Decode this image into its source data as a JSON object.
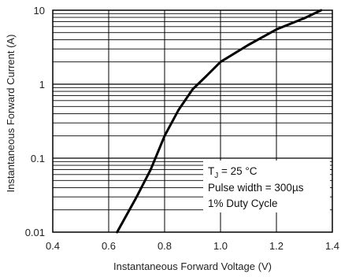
{
  "chart_data": {
    "type": "line",
    "xlabel": "Instantaneous Forward Voltage (V)",
    "ylabel": "Instantaneous Forward Current (A)",
    "x_scale": "linear",
    "y_scale": "log",
    "xlim": [
      0.4,
      1.4
    ],
    "ylim": [
      0.01,
      10
    ],
    "x_ticks": [
      0.4,
      0.6,
      0.8,
      1.0,
      1.2,
      1.4
    ],
    "x_tick_labels": [
      "0.4",
      "0.6",
      "0.8",
      "1.0",
      "1.2",
      "1.4"
    ],
    "y_ticks": [
      0.01,
      0.1,
      1,
      10
    ],
    "y_tick_labels": [
      "0.01",
      "0.1",
      "1",
      "10"
    ],
    "grid": true,
    "series": [
      {
        "color": "#000000",
        "points": [
          {
            "x": 0.63,
            "y": 0.01
          },
          {
            "x": 0.7,
            "y": 0.03
          },
          {
            "x": 0.75,
            "y": 0.07
          },
          {
            "x": 0.8,
            "y": 0.2
          },
          {
            "x": 0.85,
            "y": 0.45
          },
          {
            "x": 0.9,
            "y": 0.85
          },
          {
            "x": 0.95,
            "y": 1.3
          },
          {
            "x": 1.0,
            "y": 2.0
          },
          {
            "x": 1.1,
            "y": 3.4
          },
          {
            "x": 1.2,
            "y": 5.5
          },
          {
            "x": 1.3,
            "y": 7.8
          },
          {
            "x": 1.36,
            "y": 10
          }
        ]
      }
    ],
    "annotation": {
      "lines": [
        "T J = 25 °C",
        "Pulse width = 300µs",
        "1% Duty Cycle"
      ],
      "placement": "bottom-right"
    }
  }
}
